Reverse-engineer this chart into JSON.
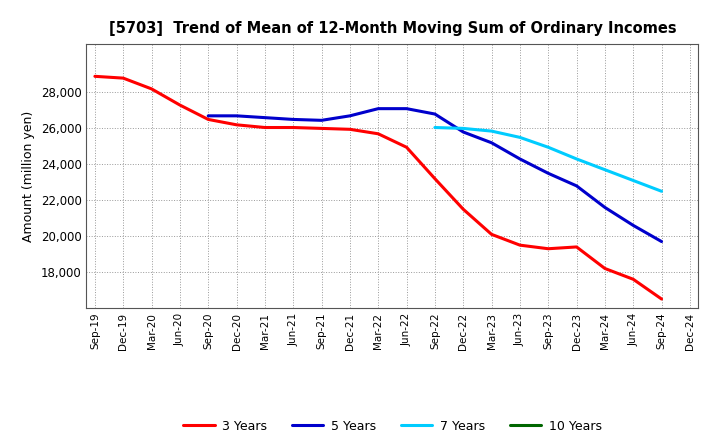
{
  "title": "[5703]  Trend of Mean of 12-Month Moving Sum of Ordinary Incomes",
  "ylabel": "Amount (million yen)",
  "background_color": "#ffffff",
  "grid_color": "#aaaaaa",
  "xlabels": [
    "Sep-19",
    "Dec-19",
    "Mar-20",
    "Jun-20",
    "Sep-20",
    "Dec-20",
    "Mar-21",
    "Jun-21",
    "Sep-21",
    "Dec-21",
    "Mar-22",
    "Jun-22",
    "Sep-22",
    "Dec-22",
    "Mar-23",
    "Jun-23",
    "Sep-23",
    "Dec-23",
    "Mar-24",
    "Jun-24",
    "Sep-24",
    "Dec-24"
  ],
  "series_3y": {
    "color": "#ff0000",
    "label": "3 Years",
    "y": [
      28900,
      28800,
      28200,
      27300,
      26500,
      26200,
      26050,
      26050,
      26000,
      25950,
      25700,
      24950,
      23200,
      21500,
      20100,
      19500,
      19300,
      19400,
      18200,
      17600,
      16500,
      null
    ]
  },
  "series_5y": {
    "color": "#0000cc",
    "label": "5 Years",
    "y": [
      null,
      null,
      null,
      null,
      26700,
      26700,
      26600,
      26500,
      26450,
      26700,
      27100,
      27100,
      26800,
      25800,
      25200,
      24300,
      23500,
      22800,
      21600,
      20600,
      19700,
      null
    ]
  },
  "series_7y": {
    "color": "#00ccff",
    "label": "7 Years",
    "y": [
      null,
      null,
      null,
      null,
      null,
      null,
      null,
      null,
      null,
      null,
      null,
      null,
      26050,
      26000,
      25850,
      25500,
      24950,
      24300,
      23700,
      23100,
      22500,
      null
    ]
  },
  "series_10y": {
    "color": "#006600",
    "label": "10 Years",
    "y": [
      null,
      null,
      null,
      null,
      null,
      null,
      null,
      null,
      null,
      null,
      null,
      null,
      null,
      null,
      null,
      null,
      null,
      null,
      null,
      null,
      null,
      null
    ]
  },
  "ylim": [
    16000,
    30000
  ],
  "yticks": [
    18000,
    20000,
    22000,
    24000,
    26000,
    28000
  ]
}
